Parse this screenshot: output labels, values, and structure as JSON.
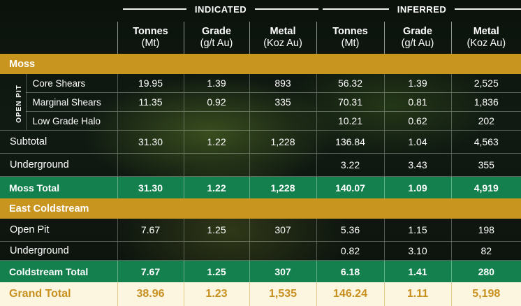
{
  "header": {
    "indicated": "INDICATED",
    "inferred": "INFERRED",
    "columns": [
      {
        "name": "Tonnes",
        "unit": "(Mt)"
      },
      {
        "name": "Grade",
        "unit": "(g/t Au)"
      },
      {
        "name": "Metal",
        "unit": "(Koz Au)"
      },
      {
        "name": "Tonnes",
        "unit": "(Mt)"
      },
      {
        "name": "Grade",
        "unit": "(g/t Au)"
      },
      {
        "name": "Metal",
        "unit": "(Koz Au)"
      }
    ]
  },
  "moss": {
    "title": "Moss",
    "open_pit_label": "OPEN PIT",
    "rows": [
      {
        "label": "Core Shears",
        "values": [
          "19.95",
          "1.39",
          "893",
          "56.32",
          "1.39",
          "2,525"
        ]
      },
      {
        "label": "Marginal Shears",
        "values": [
          "11.35",
          "0.92",
          "335",
          "70.31",
          "0.81",
          "1,836"
        ]
      },
      {
        "label": "Low Grade Halo",
        "values": [
          "",
          "",
          "",
          "10.21",
          "0.62",
          "202"
        ]
      }
    ],
    "subtotal": {
      "label": "Subtotal",
      "values": [
        "31.30",
        "1.22",
        "1,228",
        "136.84",
        "1.04",
        "4,563"
      ]
    },
    "underground": {
      "label": "Underground",
      "values": [
        "",
        "",
        "",
        "3.22",
        "3.43",
        "355"
      ]
    },
    "total": {
      "label": "Moss Total",
      "values": [
        "31.30",
        "1.22",
        "1,228",
        "140.07",
        "1.09",
        "4,919"
      ]
    }
  },
  "coldstream": {
    "title": "East Coldstream",
    "open_pit": {
      "label": "Open Pit",
      "values": [
        "7.67",
        "1.25",
        "307",
        "5.36",
        "1.15",
        "198"
      ]
    },
    "underground": {
      "label": "Underground",
      "values": [
        "",
        "",
        "",
        "0.82",
        "3.10",
        "82"
      ]
    },
    "total": {
      "label": "Coldstream Total",
      "values": [
        "7.67",
        "1.25",
        "307",
        "6.18",
        "1.41",
        "280"
      ]
    }
  },
  "grand_total": {
    "label": "Grand Total",
    "values": [
      "38.96",
      "1.23",
      "1,535",
      "146.24",
      "1.11",
      "5,198"
    ]
  },
  "colors": {
    "section_gold": "#c8951f",
    "total_green": "#13804e",
    "grand_bg": "#fcf6e0",
    "grand_text": "#c8901f"
  }
}
